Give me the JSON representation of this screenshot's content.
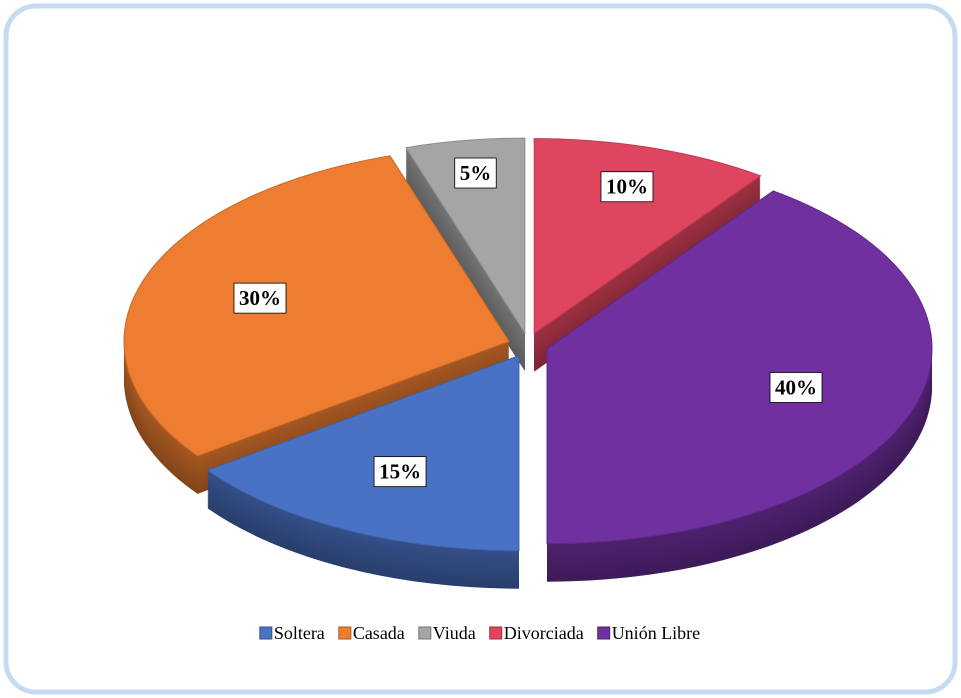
{
  "chart_data": {
    "type": "pie",
    "categories": [
      "Soltera",
      "Casada",
      "Viuda",
      "Divorciada",
      "Unión Libre"
    ],
    "values": [
      15,
      30,
      5,
      10,
      40
    ],
    "value_labels": [
      "15%",
      "30%",
      "5%",
      "10%",
      "40%"
    ],
    "colors": [
      "#4a72c4",
      "#ed7d31",
      "#a5a5a5",
      "#e0455f",
      "#7030a0"
    ],
    "legend": "bottom"
  }
}
